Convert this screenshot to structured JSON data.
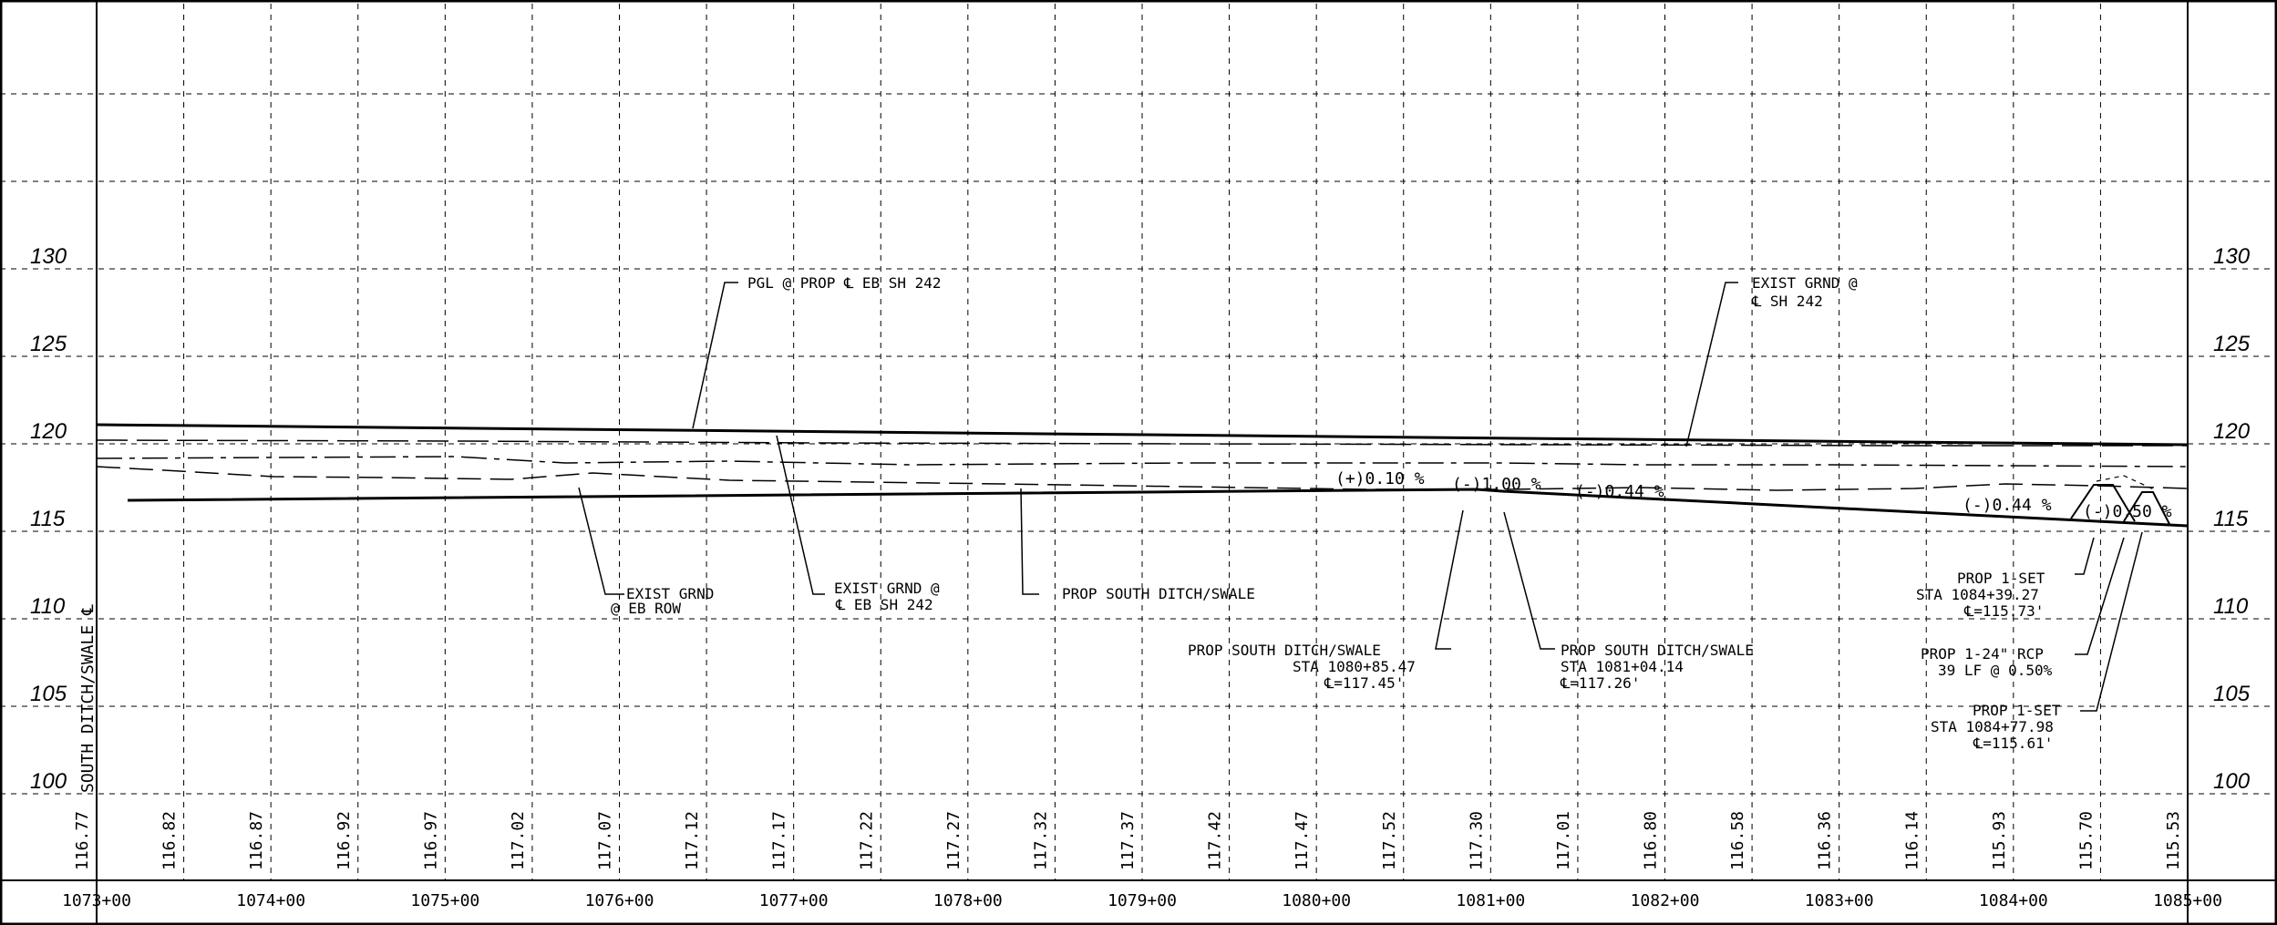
{
  "sheet": {
    "y_axis_label": "SOUTH DITCH/SWALE ℄",
    "elevations": [
      "130",
      "125",
      "120",
      "115",
      "110",
      "105",
      "100"
    ],
    "stations": [
      "1073+00",
      "1074+00",
      "1075+00",
      "1076+00",
      "1077+00",
      "1078+00",
      "1079+00",
      "1080+00",
      "1081+00",
      "1082+00",
      "1083+00",
      "1084+00",
      "1085+00"
    ],
    "bottom_values": [
      "116.77",
      "116.82",
      "116.87",
      "116.92",
      "116.97",
      "117.02",
      "117.07",
      "117.12",
      "117.17",
      "117.22",
      "117.27",
      "117.32",
      "117.37",
      "117.42",
      "117.47",
      "117.52",
      "117.30",
      "117.01",
      "116.80",
      "116.58",
      "116.36",
      "116.14",
      "115.93",
      "115.70",
      "115.53"
    ]
  },
  "grades": {
    "g1": "(+)0.10 %",
    "g2": "(-)1.00 %",
    "g3": "(-)0.44 %",
    "g4": "(-)0.44 %",
    "g5": "(-)0.50 %"
  },
  "annotations": {
    "pgl": "PGL @ PROP ℄ EB SH 242",
    "exist_grnd_cl_1": "EXIST GRND @",
    "exist_grnd_cl_2": "℄ SH 242",
    "exist_row_1": "EXIST GRND",
    "exist_row_2": "@ EB ROW",
    "exist_eb_1": "EXIST GRND @",
    "exist_eb_2": "℄ EB SH 242",
    "prop_ditch": "PROP SOUTH DITCH/SWALE",
    "pd1_1": "PROP SOUTH DITCH/SWALE",
    "pd1_2": "STA 1080+85.47",
    "pd1_3": "℄=117.45'",
    "pd2_1": "PROP SOUTH DITCH/SWALE",
    "pd2_2": "STA 1081+04.14",
    "pd2_3": "℄=117.26'",
    "set1_1": "PROP 1-SET",
    "set1_2": "STA 1084+39.27",
    "set1_3": "℄=115.73'",
    "rcp_1": "PROP 1-24\" RCP",
    "rcp_2": "39 LF @ 0.50%",
    "set2_1": "PROP 1-SET",
    "set2_2": "STA 1084+77.98",
    "set2_3": "℄=115.61'"
  }
}
